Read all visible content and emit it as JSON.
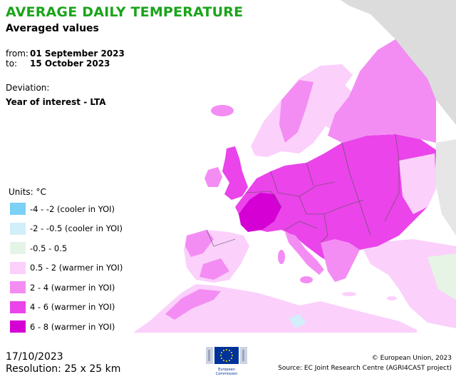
{
  "title": "AVERAGE DAILY TEMPERATURE",
  "subtitle": "Averaged values",
  "period": {
    "from_label": "from:",
    "from_value": "01 September 2023",
    "to_label": "to:",
    "to_value": "15 October 2023"
  },
  "deviation": {
    "label": "Deviation:",
    "value": "Year of interest - LTA"
  },
  "legend": {
    "units": "Units: °C",
    "items": [
      {
        "label": "-4 - -2 (cooler in YOI)",
        "color": "#7ad0f5"
      },
      {
        "label": "-2 - -0.5 (cooler in YOI)",
        "color": "#d2eefa"
      },
      {
        "label": "-0.5 - 0.5",
        "color": "#e6f4e6"
      },
      {
        "label": "0.5 - 2 (warmer in YOI)",
        "color": "#fbd0fb"
      },
      {
        "label": "2 - 4 (warmer in YOI)",
        "color": "#f38df3"
      },
      {
        "label": "4 - 6 (warmer in YOI)",
        "color": "#ea44ea"
      },
      {
        "label": "6 - 8 (warmer in YOI)",
        "color": "#d400d4"
      }
    ]
  },
  "footer": {
    "date": "17/10/2023",
    "resolution": "Resolution: 25 x 25 km",
    "copyright": "© European Union, 2023",
    "source": "Source: EC Joint Research Centre (AGRI4CAST project)",
    "logo_line1": "European",
    "logo_line2": "Commission"
  },
  "colors": {
    "title": "#1aa51a",
    "sea": "#ffffff",
    "outside_domain": "#dcdcdc",
    "eu_blue": "#003399",
    "eu_star": "#ffdd00"
  }
}
